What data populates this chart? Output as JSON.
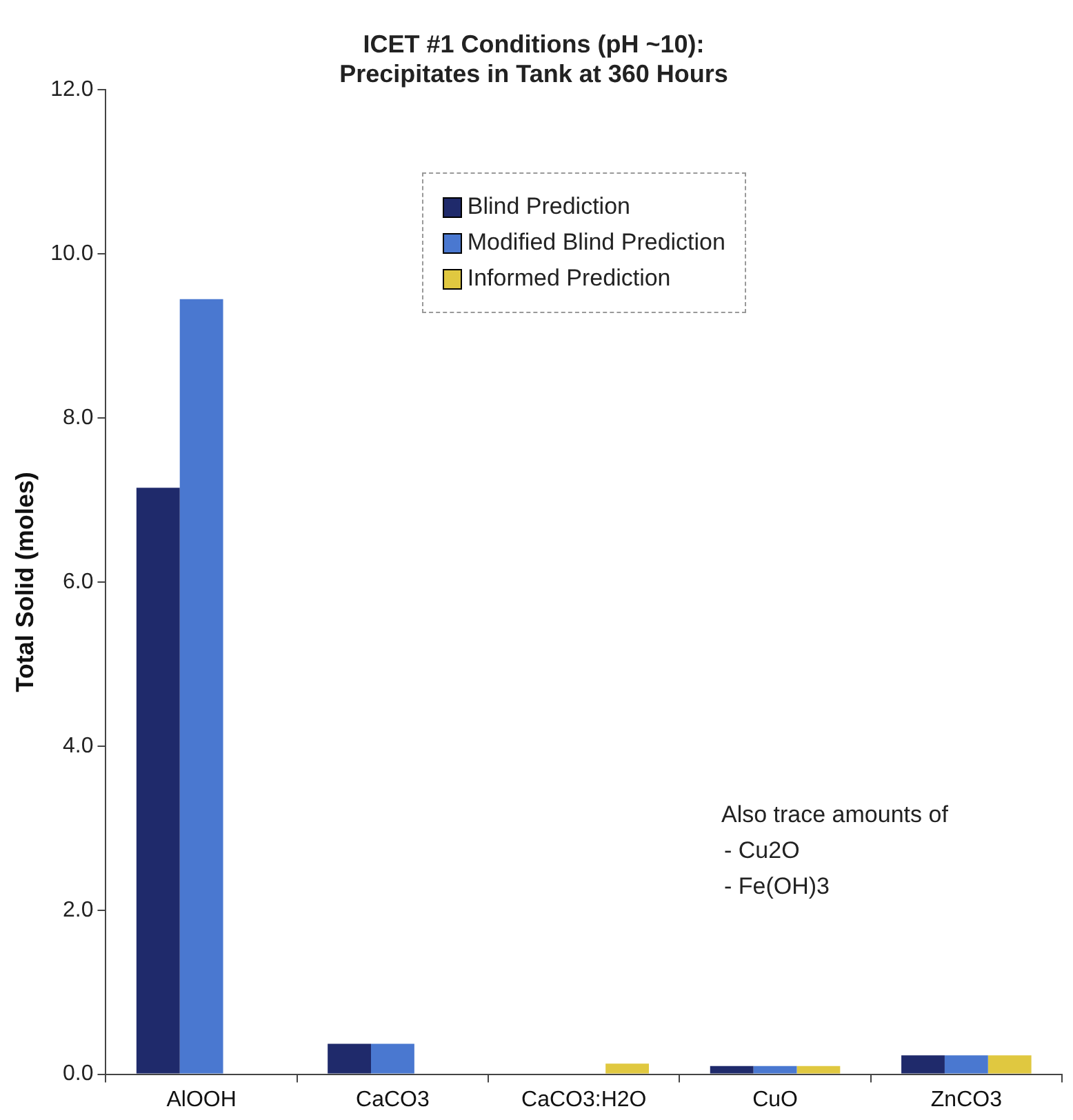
{
  "chart_data": {
    "type": "bar",
    "title": "ICET #1 Conditions (pH ~10):\nPrecipitates in Tank at 360 Hours",
    "ylabel": "Total Solid (moles)",
    "categories": [
      "AlOOH",
      "CaCO3",
      "CaCO3:H2O",
      "CuO",
      "ZnCO3"
    ],
    "series": [
      {
        "name": "Blind Prediction",
        "color": "#1f2a6b",
        "values": [
          7.15,
          0.37,
          null,
          0.1,
          0.23
        ]
      },
      {
        "name": "Modified Blind Prediction",
        "color": "#4a78d0",
        "values": [
          9.45,
          0.37,
          null,
          0.1,
          0.23
        ]
      },
      {
        "name": "Informed Prediction",
        "color": "#e0c840",
        "values": [
          null,
          null,
          0.13,
          0.1,
          0.23
        ]
      }
    ],
    "ylim": [
      0,
      12
    ],
    "yticks": [
      {
        "value": 0,
        "label": "0.0"
      },
      {
        "value": 2,
        "label": "2.0"
      },
      {
        "value": 4,
        "label": "4.0"
      },
      {
        "value": 6,
        "label": "6.0"
      },
      {
        "value": 8,
        "label": "8.0"
      },
      {
        "value": 10,
        "label": "10.0"
      },
      {
        "value": 12,
        "label": "12.0"
      }
    ],
    "grid": false,
    "legend": "top",
    "annotations": [
      "Also trace amounts of",
      "- Cu2O",
      "- Fe(OH)3"
    ]
  }
}
